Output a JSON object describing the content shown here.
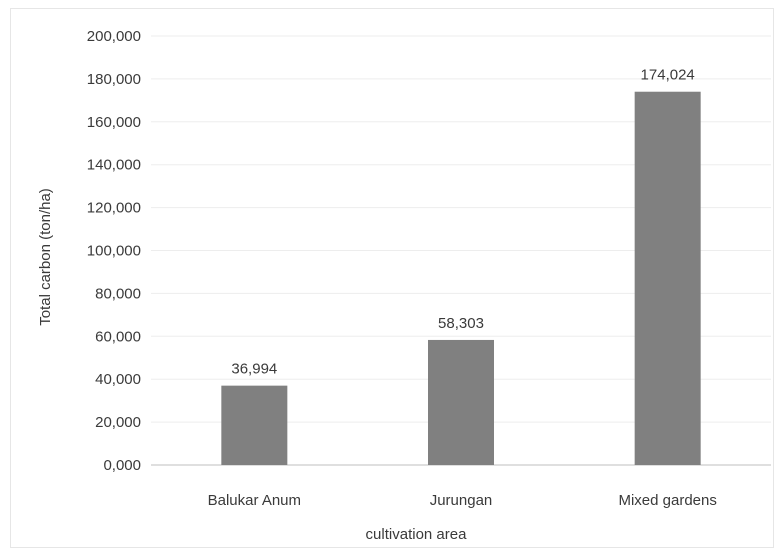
{
  "chart_data": {
    "type": "bar",
    "title": "",
    "xlabel": "cultivation area",
    "ylabel": "Total carbon (ton/ha)",
    "categories": [
      "Balukar Anum",
      "Jurungan",
      "Mixed gardens"
    ],
    "values": [
      36994,
      58303,
      174024
    ],
    "data_labels": [
      "36,994",
      "58,303",
      "174,024"
    ],
    "ylim": [
      0,
      200000
    ],
    "yticks": [
      0,
      20000,
      40000,
      60000,
      80000,
      100000,
      120000,
      140000,
      160000,
      180000,
      200000
    ],
    "ytick_labels": [
      "0,000",
      "20,000",
      "40,000",
      "60,000",
      "80,000",
      "100,000",
      "120,000",
      "140,000",
      "160,000",
      "180,000",
      "200,000"
    ],
    "bar_color": "#808080",
    "grid": true,
    "legend": "none"
  }
}
